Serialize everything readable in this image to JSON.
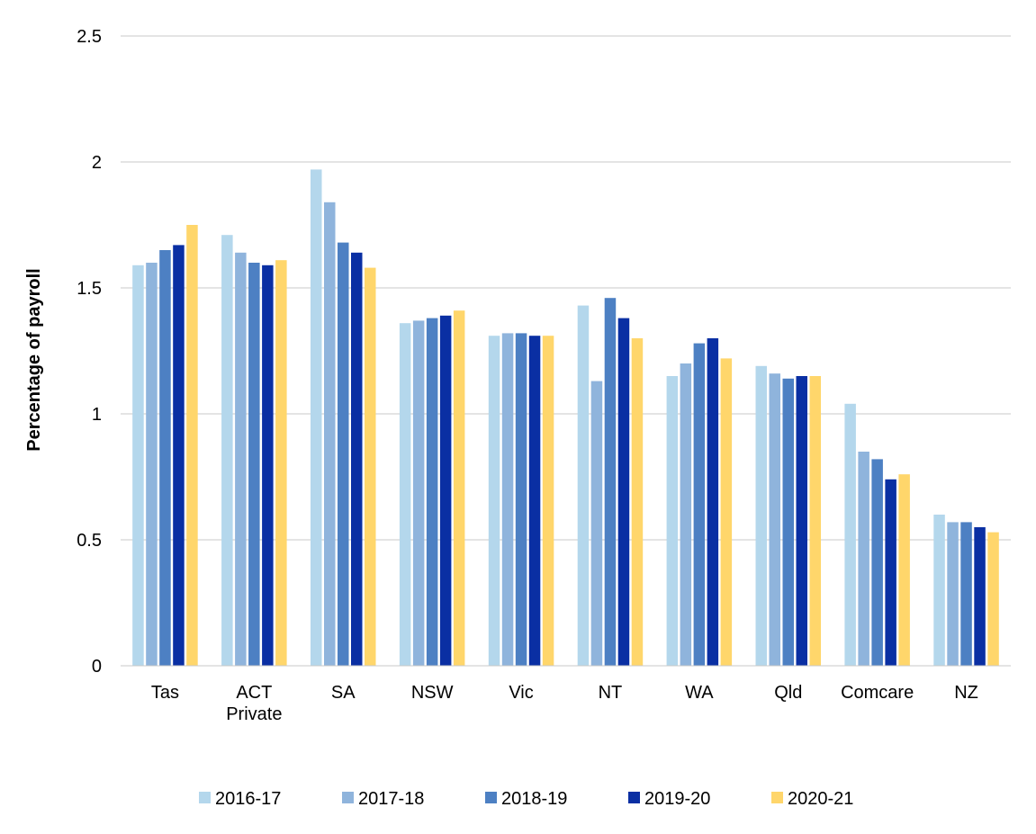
{
  "chart_data": {
    "type": "bar",
    "title": "",
    "xlabel": "",
    "ylabel": "Percentage of payroll",
    "ylim": [
      0,
      2.5
    ],
    "yticks": [
      "0",
      "0.5",
      "1",
      "1.5",
      "2",
      "2.5"
    ],
    "grid": true,
    "legend_position": "bottom",
    "categories": [
      [
        "Tas"
      ],
      [
        "ACT",
        "Private"
      ],
      [
        "SA"
      ],
      [
        "NSW"
      ],
      [
        "Vic"
      ],
      [
        "NT"
      ],
      [
        "WA"
      ],
      [
        "Qld"
      ],
      [
        "Comcare"
      ],
      [
        "NZ"
      ]
    ],
    "series": [
      {
        "name": "2016-17",
        "color": "#b4d7ec",
        "values": [
          1.59,
          1.71,
          1.97,
          1.36,
          1.31,
          1.43,
          1.15,
          1.19,
          1.04,
          0.6
        ]
      },
      {
        "name": "2017-18",
        "color": "#8fb4dc",
        "values": [
          1.6,
          1.64,
          1.84,
          1.37,
          1.32,
          1.13,
          1.2,
          1.16,
          0.85,
          0.57
        ]
      },
      {
        "name": "2018-19",
        "color": "#4d80c3",
        "values": [
          1.65,
          1.6,
          1.68,
          1.38,
          1.32,
          1.46,
          1.28,
          1.14,
          0.82,
          0.57
        ]
      },
      {
        "name": "2019-20",
        "color": "#0a2fa3",
        "values": [
          1.67,
          1.59,
          1.64,
          1.39,
          1.31,
          1.38,
          1.3,
          1.15,
          0.74,
          0.55
        ]
      },
      {
        "name": "2020-21",
        "color": "#ffd66b",
        "values": [
          1.75,
          1.61,
          1.58,
          1.41,
          1.31,
          1.3,
          1.22,
          1.15,
          0.76,
          0.53
        ]
      }
    ]
  }
}
